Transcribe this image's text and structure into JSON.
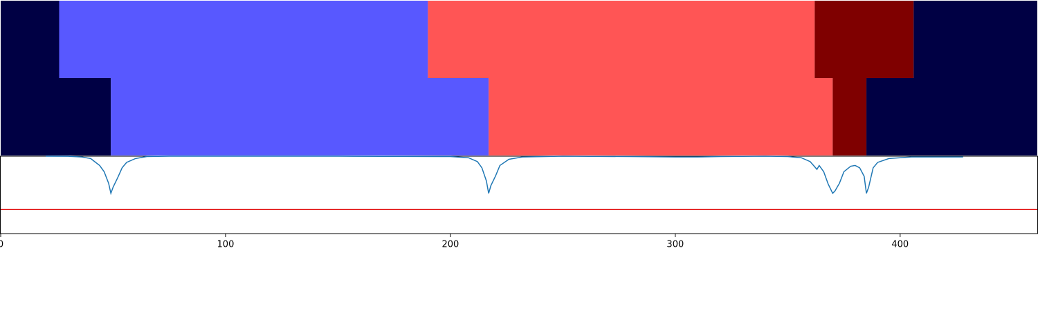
{
  "chart_data": {
    "type": "line",
    "xlim": [
      0,
      461
    ],
    "xticks": [
      0,
      100,
      200,
      300,
      400
    ],
    "ylim": [
      0,
      1
    ],
    "segment_rows": [
      {
        "segments": [
          {
            "start": 0,
            "end": 26,
            "color": "#000044"
          },
          {
            "start": 26,
            "end": 190,
            "color": "#5858ff"
          },
          {
            "start": 190,
            "end": 362,
            "color": "#ff5555"
          },
          {
            "start": 362,
            "end": 406,
            "color": "#7f0000"
          },
          {
            "start": 406,
            "end": 461,
            "color": "#000044"
          }
        ]
      },
      {
        "segments": [
          {
            "start": 0,
            "end": 49,
            "color": "#000044"
          },
          {
            "start": 49,
            "end": 217,
            "color": "#5858ff"
          },
          {
            "start": 217,
            "end": 370,
            "color": "#ff5555"
          },
          {
            "start": 370,
            "end": 385,
            "color": "#7f0000"
          },
          {
            "start": 385,
            "end": 461,
            "color": "#000044"
          }
        ]
      }
    ],
    "series": [
      {
        "color": "#1f77b4",
        "x": [
          20,
          30,
          36,
          40,
          44,
          46,
          48,
          49,
          50,
          52,
          54,
          56,
          60,
          65,
          75,
          150,
          200,
          208,
          212,
          214,
          216,
          217,
          218,
          220,
          222,
          226,
          232,
          250,
          280,
          300,
          310,
          320,
          340,
          350,
          356,
          360,
          363,
          364,
          366,
          368,
          370,
          371,
          373,
          375,
          378,
          380,
          382,
          384,
          385,
          386,
          388,
          390,
          395,
          405,
          428
        ],
        "values": [
          1.0,
          0.999,
          0.99,
          0.97,
          0.88,
          0.8,
          0.65,
          0.52,
          0.6,
          0.72,
          0.85,
          0.92,
          0.97,
          0.995,
          1.0,
          1.0,
          0.995,
          0.98,
          0.93,
          0.85,
          0.68,
          0.52,
          0.62,
          0.74,
          0.88,
          0.96,
          0.99,
          1.0,
          0.995,
          0.99,
          0.99,
          0.995,
          1.0,
          0.995,
          0.98,
          0.93,
          0.83,
          0.88,
          0.8,
          0.64,
          0.52,
          0.55,
          0.65,
          0.8,
          0.87,
          0.88,
          0.85,
          0.74,
          0.52,
          0.6,
          0.85,
          0.92,
          0.97,
          0.99,
          0.99
        ]
      }
    ],
    "threshold": {
      "value": 0.31,
      "color": "#e00000"
    }
  }
}
